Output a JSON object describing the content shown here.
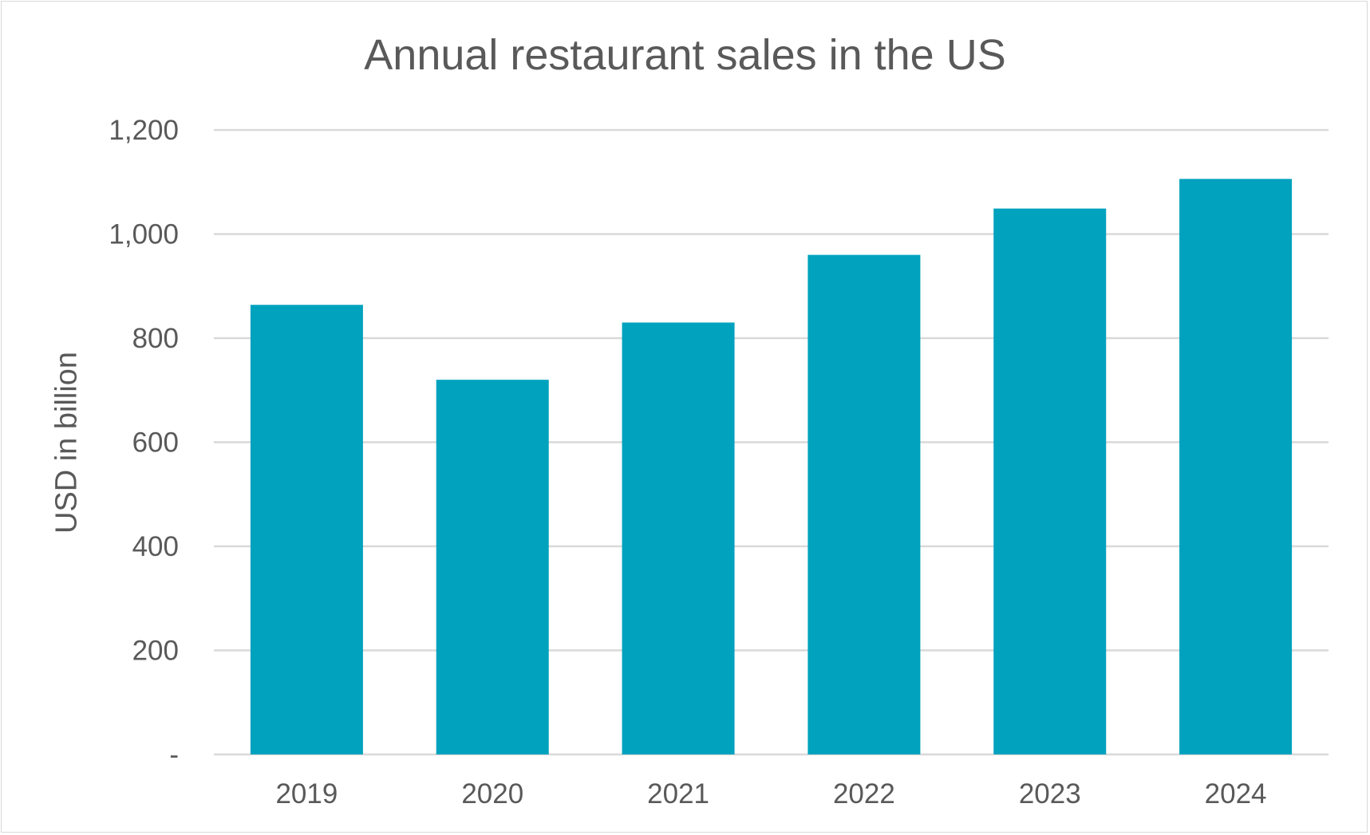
{
  "chart_data": {
    "type": "bar",
    "title": "Annual restaurant sales in the US",
    "xlabel": "",
    "ylabel": "USD in billion",
    "categories": [
      "2019",
      "2020",
      "2021",
      "2022",
      "2023",
      "2024"
    ],
    "values": [
      864,
      720,
      830,
      960,
      1049,
      1106
    ],
    "ylim": [
      0,
      1200
    ],
    "yticks": [
      0,
      200,
      400,
      600,
      800,
      1000,
      1200
    ],
    "ytick_labels": [
      "-",
      "200",
      "400",
      "600",
      "800",
      "1,000",
      "1,200"
    ],
    "grid": true,
    "legend": "none",
    "bar_color": "#00A2BE",
    "grid_color": "#D9D9D9",
    "text_color": "#595959"
  }
}
